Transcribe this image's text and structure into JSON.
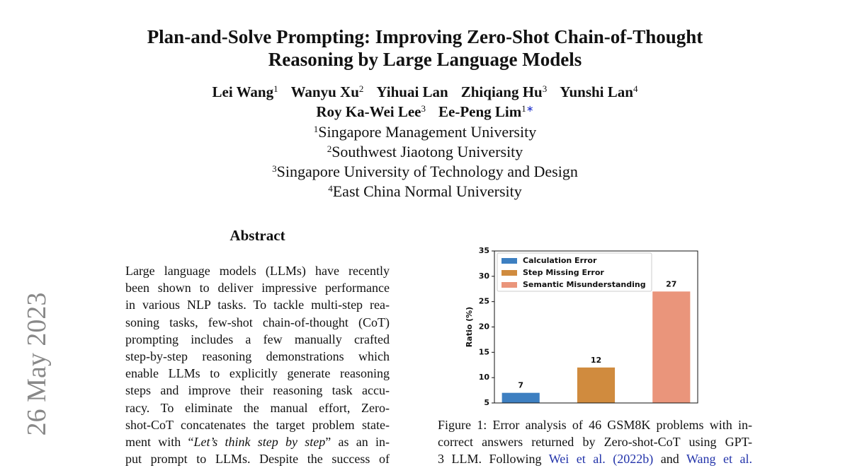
{
  "side_stamp": "26 May 2023",
  "header": {
    "title_lines": [
      "Plan-and-Solve Prompting: Improving Zero-Shot Chain-of-Thought",
      "Reasoning by Large Language Models"
    ],
    "author_lines": [
      [
        {
          "name": "Lei Wang",
          "sup": "1"
        },
        {
          "name": "Wanyu Xu",
          "sup": "2"
        },
        {
          "name": "Yihuai Lan"
        },
        {
          "name": "Zhiqiang Hu",
          "sup": "3"
        },
        {
          "name": "Yunshi Lan",
          "sup": "4"
        }
      ],
      [
        {
          "name": "Roy Ka-Wei Lee",
          "sup": "3"
        },
        {
          "name": "Ee-Peng Lim",
          "sup": "1",
          "note": "∗"
        }
      ]
    ],
    "affiliations": [
      {
        "sup": "1",
        "name": "Singapore Management University"
      },
      {
        "sup": "2",
        "name": "Southwest Jiaotong University"
      },
      {
        "sup": "3",
        "name": "Singapore University of Technology and Design"
      },
      {
        "sup": "4",
        "name": "East China Normal University"
      }
    ]
  },
  "abstract": {
    "heading": "Abstract",
    "lines": [
      "Large language models (LLMs) have recently",
      "been shown to deliver impressive performance",
      "in various NLP tasks. To tackle multi-step rea-",
      "soning tasks, few-shot chain-of-thought (CoT)",
      "prompting includes a few manually crafted",
      "step-by-step reasoning demonstrations which",
      "enable LLMs to explicitly generate reasoning",
      "steps and improve their reasoning task accu-",
      "racy.  To eliminate the manual effort, Zero-",
      "shot-CoT concatenates the target problem state-",
      {
        "parts": [
          "ment with “",
          "Let’s think step by step",
          "” as an in-"
        ]
      },
      "put prompt to LLMs. Despite the success of"
    ]
  },
  "figure": {
    "chart_data": {
      "type": "bar",
      "categories": [
        null,
        null,
        null
      ],
      "values": [
        7,
        12,
        27
      ],
      "colors": [
        "#3d7fc1",
        "#d08b3e",
        "#ea957b"
      ],
      "legend": {
        "labels": [
          "Calculation Error",
          "Step Missing Error",
          "Semantic Misunderstanding"
        ],
        "position": "upper left"
      },
      "ylabel": "Ratio (%)",
      "ylim": [
        5,
        35
      ],
      "yticks": [
        5,
        10,
        15,
        20,
        25,
        30,
        35
      ],
      "grid": false
    },
    "caption_lines": [
      "Figure 1: Error analysis of 46 GSM8K problems with in-",
      "correct answers returned by Zero-shot-CoT using GPT-",
      {
        "parts": [
          "3 LLM. Following ",
          "Wei et al. (2022b)",
          " and ",
          "Wang et al."
        ]
      }
    ]
  }
}
